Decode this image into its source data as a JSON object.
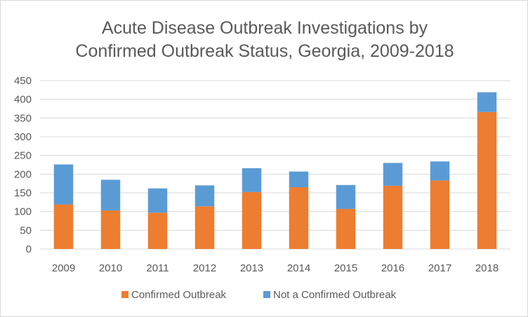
{
  "chart_data": {
    "type": "bar",
    "stacked": true,
    "title": "Acute Disease Outbreak Investigations by Confirmed Outbreak Status, Georgia, 2009-2018",
    "title_lines": [
      "Acute Disease Outbreak Investigations by",
      "Confirmed Outbreak Status, Georgia, 2009-2018"
    ],
    "xlabel": "",
    "ylabel": "",
    "ylim": [
      0,
      450
    ],
    "yticks": [
      "0",
      "50",
      "100",
      "150",
      "200",
      "250",
      "300",
      "350",
      "400",
      "450"
    ],
    "categories": [
      "2009",
      "2010",
      "2011",
      "2012",
      "2013",
      "2014",
      "2015",
      "2016",
      "2017",
      "2018"
    ],
    "series": [
      {
        "name": "Confirmed Outbreak",
        "color": "#ed7d31",
        "values": [
          119,
          103,
          97,
          114,
          152,
          165,
          107,
          169,
          183,
          366
        ]
      },
      {
        "name": "Not a Confirmed Outbreak",
        "color": "#5b9bd5",
        "values": [
          107,
          82,
          65,
          56,
          64,
          42,
          64,
          61,
          51,
          53
        ]
      }
    ],
    "grid": true,
    "legend": "bottom"
  }
}
